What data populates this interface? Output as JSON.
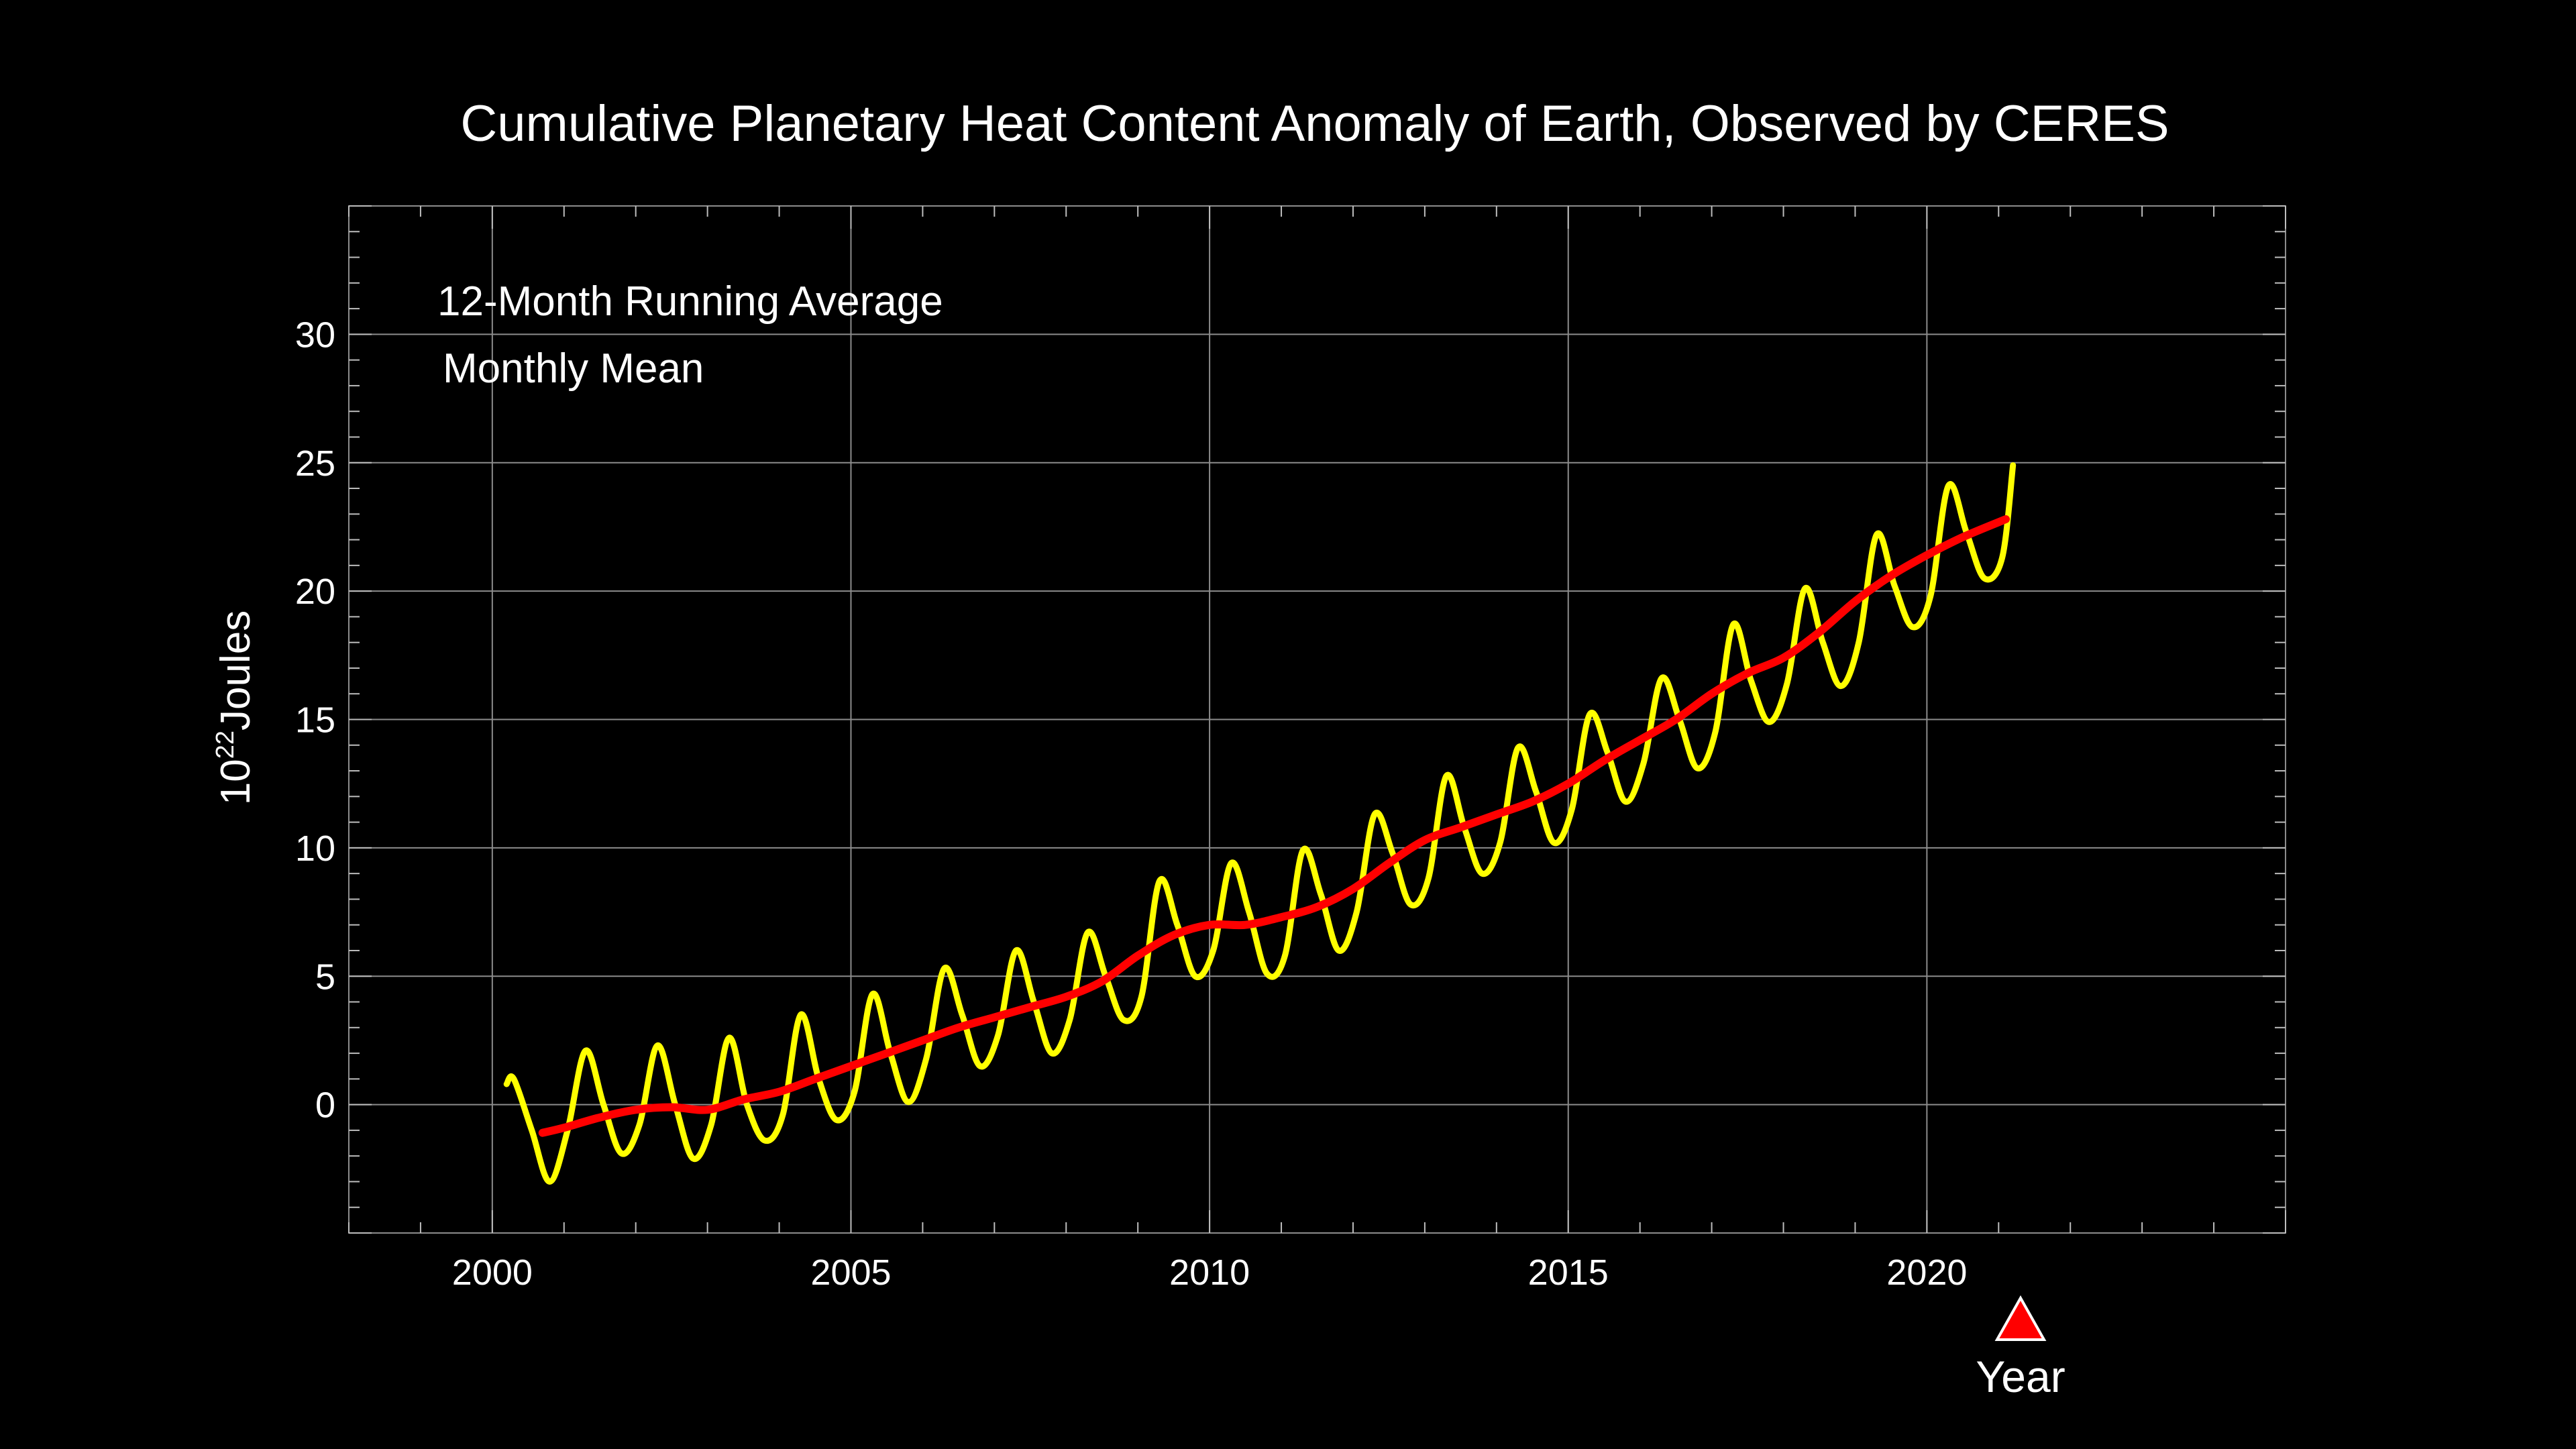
{
  "chart_data": {
    "type": "line",
    "title": "Cumulative Planetary Heat Content Anomaly of Earth, Observed by CERES",
    "ylabel_base": "10",
    "ylabel_exp": "22",
    "ylabel_unit": "Joules",
    "xlabel": "Year",
    "xlim": [
      1998,
      2025
    ],
    "ylim": [
      -5,
      35
    ],
    "x_ticks": [
      2000,
      2005,
      2010,
      2015,
      2020
    ],
    "y_ticks": [
      0,
      5,
      10,
      15,
      20,
      25,
      30
    ],
    "grid": true,
    "legend_position": "top-left",
    "marker_color": "#ff0000",
    "series": [
      {
        "name": "12-Month Running Average",
        "color": "#ff0000",
        "x": [
          2000.7,
          2001.0,
          2001.5,
          2002.0,
          2002.5,
          2003.0,
          2003.5,
          2004.0,
          2004.5,
          2005.0,
          2005.5,
          2006.0,
          2006.5,
          2007.0,
          2007.5,
          2008.0,
          2008.5,
          2009.0,
          2009.5,
          2010.0,
          2010.5,
          2011.0,
          2011.5,
          2012.0,
          2012.5,
          2013.0,
          2013.5,
          2014.0,
          2014.5,
          2015.0,
          2015.5,
          2016.0,
          2016.5,
          2017.0,
          2017.5,
          2018.0,
          2018.5,
          2019.0,
          2019.5,
          2020.0,
          2020.5,
          2021.1
        ],
        "values": [
          -1.1,
          -0.9,
          -0.5,
          -0.2,
          -0.1,
          -0.2,
          0.2,
          0.5,
          1.0,
          1.5,
          2.0,
          2.5,
          3.0,
          3.4,
          3.8,
          4.2,
          4.8,
          5.8,
          6.6,
          7.0,
          7.0,
          7.3,
          7.7,
          8.4,
          9.4,
          10.3,
          10.8,
          11.3,
          11.8,
          12.5,
          13.4,
          14.2,
          15.0,
          16.0,
          16.8,
          17.4,
          18.4,
          19.6,
          20.6,
          21.4,
          22.1,
          22.8
        ]
      },
      {
        "name": "Monthly Mean",
        "color": "#ffff00",
        "x": [
          2000.2,
          2000.3,
          2000.55,
          2000.8,
          2001.05,
          2001.3,
          2001.55,
          2001.8,
          2002.05,
          2002.3,
          2002.55,
          2002.8,
          2003.05,
          2003.3,
          2003.55,
          2003.8,
          2004.05,
          2004.3,
          2004.55,
          2004.8,
          2005.05,
          2005.3,
          2005.55,
          2005.8,
          2006.05,
          2006.3,
          2006.55,
          2006.8,
          2007.05,
          2007.3,
          2007.55,
          2007.8,
          2008.05,
          2008.3,
          2008.55,
          2008.8,
          2009.05,
          2009.3,
          2009.55,
          2009.8,
          2010.05,
          2010.3,
          2010.55,
          2010.8,
          2011.05,
          2011.3,
          2011.55,
          2011.8,
          2012.05,
          2012.3,
          2012.55,
          2012.8,
          2013.05,
          2013.3,
          2013.55,
          2013.8,
          2014.05,
          2014.3,
          2014.55,
          2014.8,
          2015.05,
          2015.3,
          2015.55,
          2015.8,
          2016.05,
          2016.3,
          2016.55,
          2016.8,
          2017.05,
          2017.3,
          2017.55,
          2017.8,
          2018.05,
          2018.3,
          2018.55,
          2018.8,
          2019.05,
          2019.3,
          2019.55,
          2019.8,
          2020.05,
          2020.3,
          2020.55,
          2020.8,
          2021.05,
          2021.2
        ],
        "values": [
          0.8,
          1.0,
          -1.0,
          -3.0,
          -1.0,
          2.1,
          0.0,
          -1.9,
          -0.8,
          2.3,
          0.0,
          -2.1,
          -0.8,
          2.6,
          0.0,
          -1.4,
          -0.4,
          3.5,
          1.0,
          -0.6,
          0.5,
          4.3,
          2.0,
          0.1,
          1.8,
          5.3,
          3.5,
          1.5,
          2.7,
          6.0,
          4.0,
          2.0,
          3.3,
          6.7,
          5.0,
          3.3,
          4.2,
          8.7,
          7.0,
          5.0,
          6.0,
          9.4,
          7.5,
          5.1,
          5.8,
          9.9,
          8.2,
          6.0,
          7.5,
          11.3,
          9.8,
          7.8,
          8.8,
          12.8,
          10.8,
          9.0,
          10.2,
          13.9,
          12.2,
          10.2,
          11.5,
          15.2,
          13.7,
          11.8,
          13.3,
          16.6,
          15.0,
          13.1,
          14.5,
          18.7,
          16.5,
          14.9,
          16.4,
          20.1,
          18.0,
          16.3,
          18.0,
          22.2,
          20.2,
          18.6,
          19.8,
          24.1,
          22.3,
          20.5,
          21.3,
          24.9
        ]
      }
    ]
  }
}
